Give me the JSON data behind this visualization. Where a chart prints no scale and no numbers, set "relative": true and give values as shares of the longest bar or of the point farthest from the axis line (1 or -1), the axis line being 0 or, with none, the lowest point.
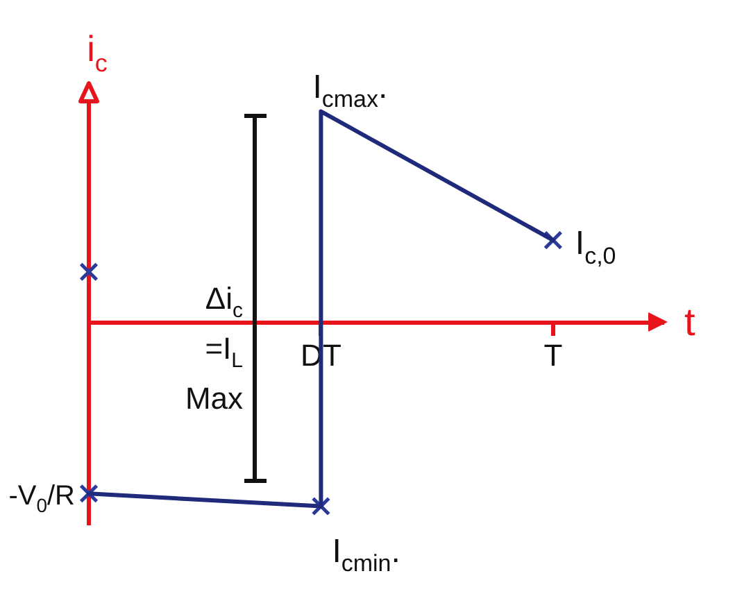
{
  "chart_data": {
    "type": "line",
    "xlabel": "t",
    "ylabel": "i$_{c}$",
    "relative": true,
    "categories": [
      null,
      "DT",
      "T"
    ],
    "series": [
      {
        "type": "line",
        "color": "#1f2a7a",
        "marker": "none",
        "values": [
          -0.81,
          -0.87,
          null
        ]
      },
      {
        "type": "line",
        "color": "#1f2a7a",
        "marker": "none",
        "x": [
          "DT",
          "DT",
          "T"
        ],
        "values": [
          -0.87,
          1,
          0.39
        ]
      },
      {
        "type": "scatter",
        "color": "#2b3a9a",
        "marker": "cross",
        "values": [
          -0.81,
          -0.87,
          0.39
        ]
      },
      {
        "type": "scatter",
        "color": "#2b3a9a",
        "marker": "cross",
        "values": [
          0.24,
          null,
          null
        ]
      }
    ],
    "annotations": [
      {
        "text": "I$_{cmax}$.",
        "x": "DT",
        "y": 1
      },
      {
        "text": "I$_{c,0}$",
        "x": "T",
        "y": 0.39
      },
      {
        "text": "I$_{cmin}$.",
        "x": "DT",
        "y": -0.87
      },
      "-V$_{0}$/R",
      "Δi$_{c}$ =I$_{L}$ Max"
    ]
  }
}
